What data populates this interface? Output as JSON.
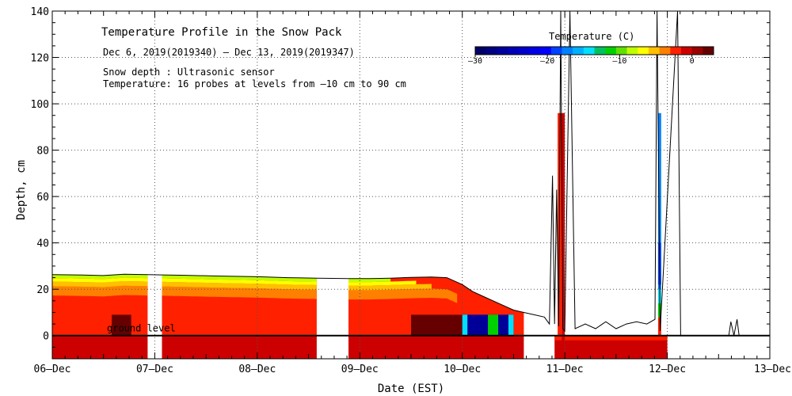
{
  "chart_data": {
    "type": "heatmap",
    "title": "Temperature Profile in the Snow Pack",
    "date_range": "Dec  6, 2019(2019340) – Dec 13, 2019(2019347)",
    "notes": [
      "Snow depth : Ultrasonic sensor",
      "Temperature: 16 probes at levels from –10 cm to 90 cm"
    ],
    "xlabel": "Date (EST)",
    "ylabel": "Depth, cm",
    "xlim": [
      0,
      7
    ],
    "ylim": [
      -10,
      140
    ],
    "yticks": [
      0,
      20,
      40,
      60,
      80,
      100,
      120,
      140
    ],
    "xticks": [
      {
        "v": 0,
        "label": "06–Dec"
      },
      {
        "v": 1,
        "label": "07–Dec"
      },
      {
        "v": 2,
        "label": "08–Dec"
      },
      {
        "v": 3,
        "label": "09–Dec"
      },
      {
        "v": 4,
        "label": "10–Dec"
      },
      {
        "v": 5,
        "label": "11–Dec"
      },
      {
        "v": 6,
        "label": "12–Dec"
      },
      {
        "v": 7,
        "label": "13–Dec"
      }
    ],
    "ground_label": "ground level",
    "colorbar": {
      "label": "Temperature (C)",
      "range": [
        -30,
        3
      ],
      "ticks": [
        {
          "v": -30,
          "label": "–30"
        },
        {
          "v": -20,
          "label": "–20"
        },
        {
          "v": -10,
          "label": "–10"
        },
        {
          "v": 0,
          "label": "0"
        }
      ],
      "colors": [
        "#000066",
        "#000080",
        "#00009a",
        "#0000b4",
        "#0000cc",
        "#0000e6",
        "#0000ff",
        "#0040ff",
        "#0080ff",
        "#00b0ff",
        "#00e0ff",
        "#00c060",
        "#00d000",
        "#60e000",
        "#c0ff00",
        "#ffff00",
        "#ffc000",
        "#ff8000",
        "#ff2000",
        "#cc0000",
        "#990000",
        "#660000"
      ]
    },
    "bands": [
      {
        "temp": -1,
        "color": "#cc0000",
        "segments": [
          [
            0,
            0.93
          ],
          [
            1.07,
            2.58
          ],
          [
            2.89,
            4.6
          ]
        ],
        "lo": -10,
        "hi": 0
      },
      {
        "temp": -2,
        "color": "#ff2000",
        "segments": [
          [
            0,
            0.93
          ],
          [
            1.07,
            2.58
          ],
          [
            2.89,
            4.6
          ]
        ],
        "lo": 0,
        "hi_from": "snow",
        "hi_offset": 0
      },
      {
        "temp": -3,
        "color": "#ff8000",
        "segments": [
          [
            0,
            0.93
          ],
          [
            1.07,
            2.58
          ],
          [
            2.89,
            3.95
          ]
        ],
        "lo_from": "snow",
        "lo_offset": -9,
        "hi_from": "snow",
        "hi_offset": -5
      },
      {
        "temp": -4,
        "color": "#ffc000",
        "segments": [
          [
            0,
            0.93
          ],
          [
            1.07,
            2.58
          ],
          [
            2.89,
            3.7
          ]
        ],
        "lo_from": "snow",
        "lo_offset": -5,
        "hi_from": "snow",
        "hi_offset": -3
      },
      {
        "temp": -5,
        "color": "#ffff00",
        "segments": [
          [
            0,
            0.93
          ],
          [
            1.07,
            2.58
          ],
          [
            2.89,
            3.55
          ]
        ],
        "lo_from": "snow",
        "lo_offset": -3,
        "hi_from": "snow",
        "hi_offset": -1.5
      },
      {
        "temp": -6,
        "color": "#c0ff00",
        "segments": [
          [
            0,
            0.93
          ],
          [
            1.07,
            2.58
          ],
          [
            2.89,
            3.3
          ]
        ],
        "lo_from": "snow",
        "lo_offset": -1.5,
        "hi_from": "snow",
        "hi_offset": 0
      },
      {
        "temp": -1,
        "color": "#cc0000",
        "segments": [
          [
            4.9,
            6.0
          ]
        ],
        "lo": -10,
        "hi": 0
      },
      {
        "temp": -2,
        "color": "#ff2000",
        "segments": [
          [
            4.9,
            6.0
          ]
        ],
        "lo": -2,
        "hi": 0
      }
    ],
    "patches": [
      {
        "temp": 0,
        "color": "#660000",
        "x": [
          0.58,
          0.77
        ],
        "y": [
          0,
          9
        ]
      },
      {
        "temp": 0,
        "color": "#660000",
        "x": [
          3.5,
          4.0
        ],
        "y": [
          0,
          9
        ]
      },
      {
        "temp": -28,
        "color": "#000099",
        "x": [
          4.0,
          4.5
        ],
        "y": [
          0,
          9
        ]
      },
      {
        "temp": -12,
        "color": "#00e0ff",
        "x": [
          4.0,
          4.05
        ],
        "y": [
          0,
          9
        ]
      },
      {
        "temp": -8,
        "color": "#00d000",
        "x": [
          4.25,
          4.35
        ],
        "y": [
          0,
          9
        ]
      },
      {
        "temp": -12,
        "color": "#00e0ff",
        "x": [
          4.45,
          4.5
        ],
        "y": [
          0,
          9
        ]
      },
      {
        "temp": -2,
        "color": "#ff2000",
        "x": [
          4.93,
          4.97
        ],
        "y": [
          0,
          96
        ]
      },
      {
        "temp": -1,
        "color": "#cc0000",
        "x": [
          4.97,
          5.0
        ],
        "y": [
          -10,
          96
        ]
      },
      {
        "temp": -20,
        "color": "#0080ff",
        "x": [
          5.91,
          5.94
        ],
        "y": [
          20,
          96
        ]
      },
      {
        "temp": -25,
        "color": "#0040ff",
        "x": [
          5.91,
          5.94
        ],
        "y": [
          22,
          40
        ]
      },
      {
        "temp": -12,
        "color": "#00e0ff",
        "x": [
          5.91,
          5.94
        ],
        "y": [
          14,
          20
        ]
      },
      {
        "temp": -8,
        "color": "#00d000",
        "x": [
          5.91,
          5.94
        ],
        "y": [
          8,
          14
        ]
      },
      {
        "temp": -2,
        "color": "#ff2000",
        "x": [
          5.91,
          5.94
        ],
        "y": [
          0,
          8
        ]
      }
    ],
    "snow_depth": [
      [
        0.0,
        26.3
      ],
      [
        0.3,
        26.1
      ],
      [
        0.5,
        25.9
      ],
      [
        0.7,
        26.5
      ],
      [
        0.93,
        26.3
      ],
      [
        1.07,
        26.2
      ],
      [
        1.3,
        26.0
      ],
      [
        1.6,
        25.7
      ],
      [
        2.0,
        25.4
      ],
      [
        2.3,
        25.0
      ],
      [
        2.58,
        24.8
      ],
      [
        2.89,
        24.6
      ],
      [
        3.1,
        24.6
      ],
      [
        3.3,
        24.8
      ],
      [
        3.5,
        25.1
      ],
      [
        3.7,
        25.3
      ],
      [
        3.85,
        25.0
      ],
      [
        4.0,
        22.0
      ],
      [
        4.1,
        19.0
      ],
      [
        4.2,
        17.0
      ],
      [
        4.3,
        15.0
      ],
      [
        4.4,
        13.0
      ],
      [
        4.5,
        11.0
      ],
      [
        4.6,
        10.0
      ],
      [
        4.7,
        9.0
      ],
      [
        4.8,
        8.0
      ],
      [
        4.85,
        5.0
      ],
      [
        4.88,
        69.0
      ],
      [
        4.9,
        5.0
      ],
      [
        4.92,
        63.0
      ],
      [
        4.94,
        4.0
      ],
      [
        4.96,
        140
      ],
      [
        4.98,
        3.0
      ],
      [
        5.0,
        2.0
      ],
      [
        5.05,
        140
      ],
      [
        5.1,
        3.0
      ],
      [
        5.2,
        5.0
      ],
      [
        5.3,
        3.0
      ],
      [
        5.4,
        6.0
      ],
      [
        5.5,
        3.0
      ],
      [
        5.6,
        5.0
      ],
      [
        5.7,
        6.0
      ],
      [
        5.8,
        5.0
      ],
      [
        5.88,
        7.0
      ],
      [
        5.9,
        140
      ],
      [
        5.93,
        2.0
      ],
      [
        6.1,
        140
      ],
      [
        6.13,
        0.0
      ],
      [
        6.6,
        0.0
      ],
      [
        6.62,
        6.0
      ],
      [
        6.65,
        0.0
      ],
      [
        6.68,
        7.0
      ],
      [
        6.7,
        0.0
      ]
    ]
  }
}
